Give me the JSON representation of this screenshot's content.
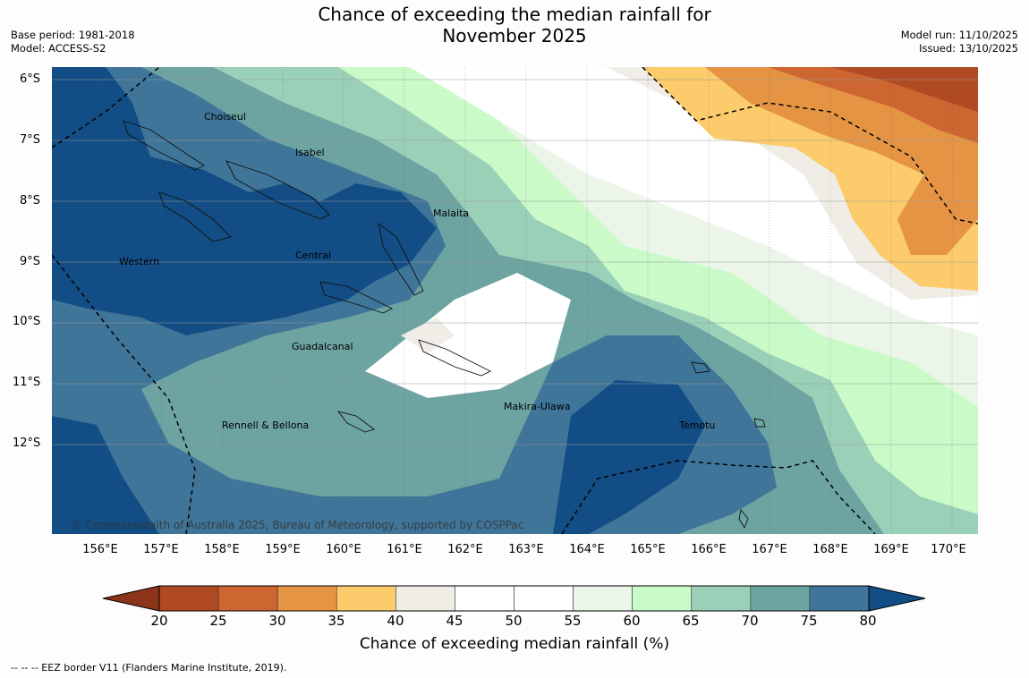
{
  "title_line1": "Chance of exceeding the median rainfall for",
  "title_line2": "November 2025",
  "base_period": "Base period: 1981-2018",
  "model": "Model: ACCESS-S2",
  "model_run": "Model run: 11/10/2025",
  "issued": "Issued: 13/10/2025",
  "lat_labels": [
    "6°S",
    "7°S",
    "8°S",
    "9°S",
    "10°S",
    "11°S",
    "12°S"
  ],
  "lon_labels": [
    "156°E",
    "157°E",
    "158°E",
    "159°E",
    "160°E",
    "161°E",
    "162°E",
    "163°E",
    "164°E",
    "165°E",
    "166°E",
    "167°E",
    "168°E",
    "169°E",
    "170°E"
  ],
  "regions": [
    "Choiseul",
    "Isabel",
    "Malaita",
    "Central",
    "Western",
    "Guadalcanal",
    "Makira-Ulawa",
    "Rennell & Bellona",
    "Temotu"
  ],
  "copyright": "© Commonwealth of Australia 2025, Bureau of Meteorology, supported by COSPPac",
  "colorbar": {
    "ticks": [
      "20",
      "25",
      "30",
      "35",
      "40",
      "45",
      "50",
      "55",
      "60",
      "65",
      "70",
      "75",
      "80"
    ],
    "label": "Chance of exceeding median rainfall (%)",
    "low_extend_color": "#8b3419",
    "high_extend_color": "#124d85",
    "bin_colors": [
      "#b04a22",
      "#cd6630",
      "#e49443",
      "#fccb6b",
      "#efede6",
      "#ffffff",
      "#ffffff",
      "#ebf6e9",
      "#c9fac8",
      "#9bd0b8",
      "#6da4a2",
      "#3f7599"
    ]
  },
  "footer": "--  --  -- EEZ border V11 (Flanders Marine Institute, 2019)."
}
